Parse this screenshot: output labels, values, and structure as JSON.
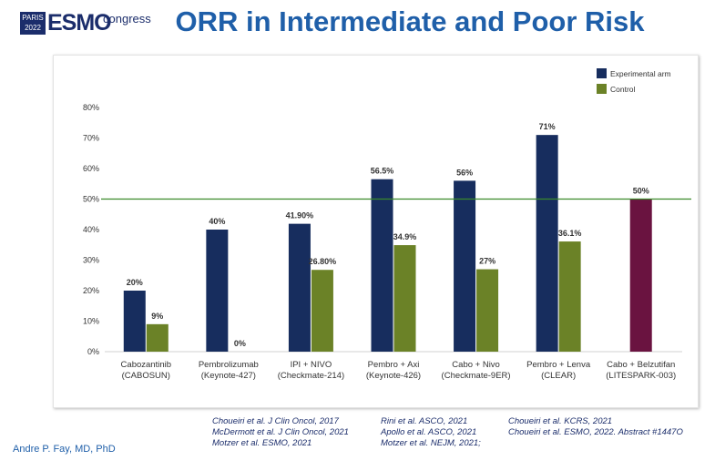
{
  "logo": {
    "city": "PARIS",
    "year": "2022",
    "brand": "ESMO",
    "suffix": "congress"
  },
  "slide_title": "ORR in Intermediate and Poor Risk",
  "author": "Andre P. Fay, MD, PhD",
  "references": {
    "col1": [
      "Choueiri et al. J Clin Oncol, 2017",
      "McDermott et al. J Clin Oncol, 2021",
      "Motzer et al. ESMO, 2021"
    ],
    "col2": [
      "Rini et al. ASCO, 2021",
      "Apollo et al. ASCO, 2021",
      "Motzer et al. NEJM, 2021;"
    ],
    "col3": [
      "Choueiri et al. KCRS, 2021",
      "Choueiri et al. ESMO, 2022. Abstract #1447O"
    ]
  },
  "chart_data": {
    "type": "bar",
    "title": "",
    "xlabel": "",
    "ylabel": "",
    "ylim": [
      0,
      80
    ],
    "yticks": [
      "0%",
      "10%",
      "20%",
      "30%",
      "40%",
      "50%",
      "60%",
      "70%",
      "80%"
    ],
    "reference_line": 50,
    "legend_position": "top-right",
    "categories": [
      [
        "Cabozantinib",
        "(CABOSUN)"
      ],
      [
        "Pembrolizumab",
        "(Keynote-427)"
      ],
      [
        "IPI + NIVO",
        "(Checkmate-214)"
      ],
      [
        "Pembro + Axi",
        "(Keynote-426)"
      ],
      [
        "Cabo + Nivo",
        "(Checkmate-9ER)"
      ],
      [
        "Pembro  + Lenva",
        "(CLEAR)"
      ],
      [
        "Cabo + Belzutifan",
        "(LITESPARK-003)"
      ]
    ],
    "series": [
      {
        "name": "Experimental arm",
        "color": "#172d5e",
        "values": [
          20,
          40,
          41.9,
          56.5,
          56,
          71,
          null
        ],
        "labels": [
          "20%",
          "40%",
          "41.90%",
          "56.5%",
          "56%",
          "71%",
          ""
        ]
      },
      {
        "name": "Control",
        "color": "#6b8227",
        "values": [
          9,
          0,
          26.8,
          34.9,
          27,
          36.1,
          null
        ],
        "labels": [
          "9%",
          "0%",
          "26.80%",
          "34.9%",
          "27%",
          "36.1%",
          ""
        ]
      }
    ],
    "single_arm": {
      "value": 50,
      "label": "50%",
      "color": "#6a1340",
      "category_index": 6
    },
    "colors": {
      "reference_line": "#3a8a2a",
      "axis_text": "#333333",
      "label_text": "#333333"
    }
  }
}
